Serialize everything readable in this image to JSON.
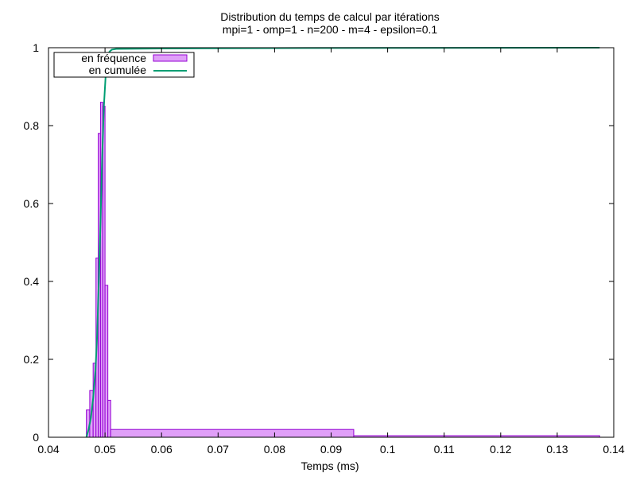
{
  "chart_data": {
    "type": "bar",
    "title": "Distribution du temps de calcul par itérations",
    "subtitle": "mpi=1 - omp=1 - n=200 - m=4 - epsilon=0.1",
    "xlabel": "Temps (ms)",
    "ylabel": "",
    "xlim": [
      0.04,
      0.14
    ],
    "ylim": [
      0,
      1
    ],
    "xticks": [
      "0.04",
      "0.05",
      "0.06",
      "0.07",
      "0.08",
      "0.09",
      "0.1",
      "0.11",
      "0.12",
      "0.13",
      "0.14"
    ],
    "yticks": [
      "0",
      "0.2",
      "0.4",
      "0.6",
      "0.8",
      "1"
    ],
    "grid": false,
    "legend_position": "top-left",
    "colors": {
      "frequency_fill": "#e09ff8",
      "frequency_edge": "#9400d3",
      "cumulative_line": "#009e73"
    },
    "series": [
      {
        "name": "en fréquence",
        "kind": "histogram",
        "bins": [
          {
            "x0": 0.0467,
            "x1": 0.0473,
            "value": 0.07
          },
          {
            "x0": 0.0473,
            "x1": 0.0479,
            "value": 0.12
          },
          {
            "x0": 0.0479,
            "x1": 0.0484,
            "value": 0.19
          },
          {
            "x0": 0.0484,
            "x1": 0.0488,
            "value": 0.46
          },
          {
            "x0": 0.0488,
            "x1": 0.0492,
            "value": 0.78
          },
          {
            "x0": 0.0492,
            "x1": 0.0496,
            "value": 0.86
          },
          {
            "x0": 0.0496,
            "x1": 0.05,
            "value": 0.85
          },
          {
            "x0": 0.05,
            "x1": 0.0505,
            "value": 0.39
          },
          {
            "x0": 0.0505,
            "x1": 0.051,
            "value": 0.095
          },
          {
            "x0": 0.051,
            "x1": 0.094,
            "value": 0.02
          },
          {
            "x0": 0.094,
            "x1": 0.1375,
            "value": 0.004
          }
        ]
      },
      {
        "name": "en cumulée",
        "kind": "line",
        "x": [
          0.0467,
          0.0471,
          0.0475,
          0.0479,
          0.0483,
          0.0486,
          0.0489,
          0.0492,
          0.0495,
          0.0498,
          0.05,
          0.0502,
          0.0505,
          0.0508,
          0.0512,
          0.052,
          0.06,
          0.08,
          0.1,
          0.12,
          0.1375
        ],
        "y": [
          0.0,
          0.02,
          0.05,
          0.1,
          0.17,
          0.26,
          0.4,
          0.55,
          0.72,
          0.85,
          0.9,
          0.95,
          0.98,
          0.99,
          0.995,
          0.997,
          0.998,
          0.999,
          0.9995,
          0.9998,
          1.0
        ]
      }
    ]
  }
}
